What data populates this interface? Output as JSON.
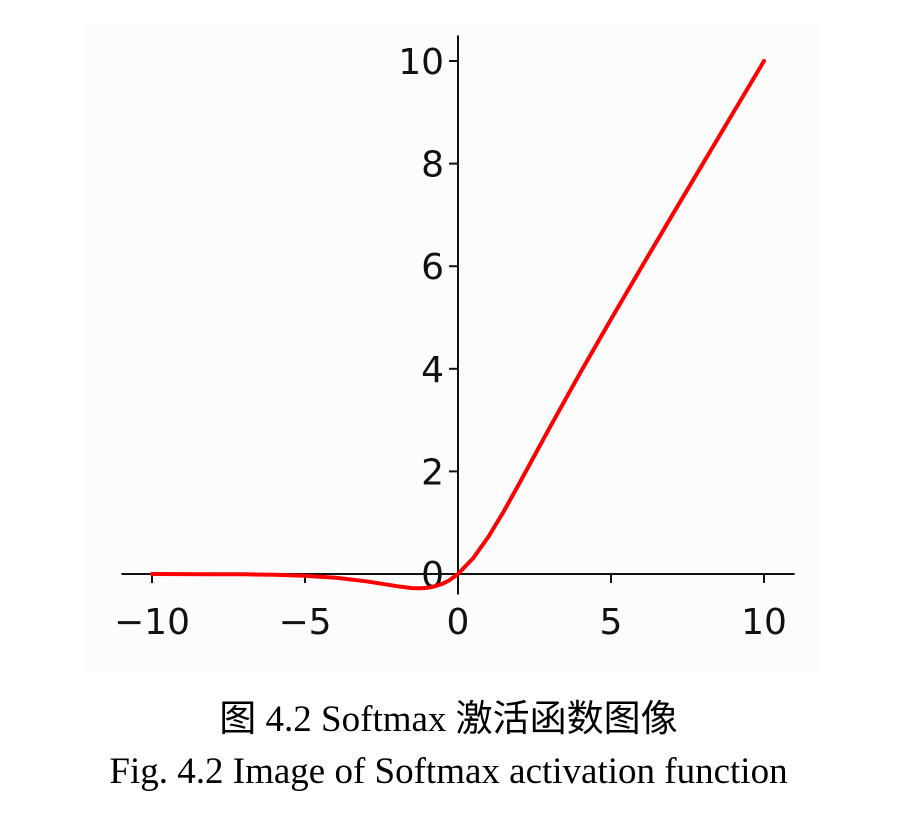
{
  "chart_data": {
    "type": "line",
    "xlim": [
      -11,
      11
    ],
    "ylim": [
      -0.4,
      10.5
    ],
    "x_ticks": [
      -10,
      -5,
      0,
      5,
      10
    ],
    "x_tick_labels": [
      "−10",
      "−5",
      "0",
      "5",
      "10"
    ],
    "y_ticks": [
      0,
      2,
      4,
      6,
      8,
      10
    ],
    "y_tick_labels": [
      "0",
      "2",
      "4",
      "6",
      "8",
      "10"
    ],
    "grid": false,
    "spines": "centered at origin",
    "series": [
      {
        "color": "#ff0000",
        "x": [
          -10,
          -9,
          -8,
          -7,
          -6,
          -5,
          -4,
          -3,
          -2.5,
          -2,
          -1.5,
          -1.2,
          -1,
          -0.8,
          -0.5,
          -0.3,
          0,
          0.5,
          1,
          1.5,
          2,
          3,
          4,
          5,
          6,
          7,
          8,
          9,
          10
        ],
        "y": [
          0,
          -0.001,
          -0.003,
          -0.006,
          -0.015,
          -0.034,
          -0.073,
          -0.142,
          -0.189,
          -0.238,
          -0.274,
          -0.279,
          -0.269,
          -0.248,
          -0.189,
          -0.128,
          0,
          0.311,
          0.731,
          1.227,
          1.762,
          2.858,
          3.928,
          4.967,
          5.985,
          6.994,
          7.997,
          8.999,
          10
        ]
      }
    ]
  },
  "caption": {
    "chinese": "图 4.2 Softmax 激活函数图像",
    "english": "Fig. 4.2 Image of Softmax activation function"
  }
}
